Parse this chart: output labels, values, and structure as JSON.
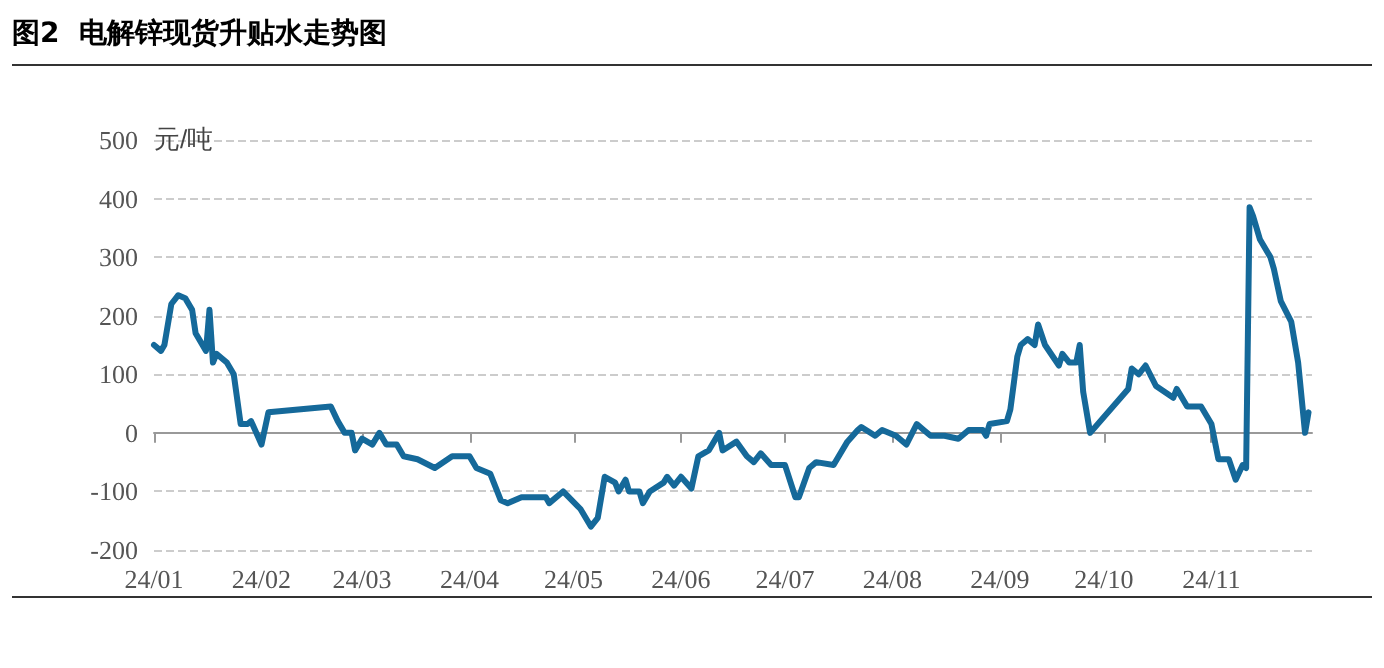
{
  "chart_data": {
    "type": "line",
    "title": "图2  电解锌现货升贴水走势图",
    "ylabel": "元/吨",
    "xlim": [
      "--01-01",
      "--11-30"
    ],
    "xticks": [
      {
        "value": "--01-01",
        "label": "24/01"
      },
      {
        "value": "--02-01",
        "label": "24/02"
      },
      {
        "value": "--03-01",
        "label": "24/03"
      },
      {
        "value": "--04-01",
        "label": "24/04"
      },
      {
        "value": "--05-01",
        "label": "24/05"
      },
      {
        "value": "--06-01",
        "label": "24/06"
      },
      {
        "value": "--07-01",
        "label": "24/07"
      },
      {
        "value": "--08-01",
        "label": "24/08"
      },
      {
        "value": "--09-01",
        "label": "24/09"
      },
      {
        "value": "--10-01",
        "label": "24/10"
      },
      {
        "value": "--11-01",
        "label": "24/11"
      }
    ],
    "ylim": [
      -200,
      500
    ],
    "yticks": [
      -200,
      -100,
      0,
      100,
      200,
      300,
      400,
      500
    ],
    "grid": "y",
    "marker": "none",
    "line_style": "solid",
    "series": [
      {
        "color": "#15699a",
        "x": [
          "--01-01",
          "--01-03",
          "--01-04",
          "--01-06",
          "--01-08",
          "--01-10",
          "--01-12",
          "--01-13",
          "--01-16",
          "--01-17",
          "--01-18",
          "--01-19",
          "--01-22",
          "--01-24",
          "--01-26",
          "--01-28",
          "--01-29",
          "--02-01",
          "--02-03",
          "--02-21",
          "--02-23",
          "--02-25",
          "--02-27",
          "--02-28",
          "--03-01",
          "--03-04",
          "--03-06",
          "--03-08",
          "--03-11",
          "--03-13",
          "--03-17",
          "--03-22",
          "--03-27",
          "--04-01",
          "--04-03",
          "--04-07",
          "--04-10",
          "--04-12",
          "--04-16",
          "--04-19",
          "--04-23",
          "--04-24",
          "--04-28",
          "--05-03",
          "--05-06",
          "--05-08",
          "--05-10",
          "--05-13",
          "--05-14",
          "--05-16",
          "--05-17",
          "--05-20",
          "--05-21",
          "--05-23",
          "--05-27",
          "--05-28",
          "--05-30",
          "--06-01",
          "--06-04",
          "--06-06",
          "--06-09",
          "--06-12",
          "--06-13",
          "--06-17",
          "--06-20",
          "--06-22",
          "--06-24",
          "--06-27",
          "--07-01",
          "--07-04",
          "--07-05",
          "--07-08",
          "--07-10",
          "--07-15",
          "--07-19",
          "--07-22",
          "--07-23",
          "--07-27",
          "--07-29",
          "--08-02",
          "--08-05",
          "--08-08",
          "--08-10",
          "--08-12",
          "--08-16",
          "--08-20",
          "--08-23",
          "--08-27",
          "--08-28",
          "--08-29",
          "--09-03",
          "--09-04",
          "--09-06",
          "--09-07",
          "--09-09",
          "--09-11",
          "--09-12",
          "--09-14",
          "--09-18",
          "--09-19",
          "--09-21",
          "--09-23",
          "--09-24",
          "--09-25",
          "--09-27",
          "--10-08",
          "--10-09",
          "--10-11",
          "--10-13",
          "--10-16",
          "--10-21",
          "--10-22",
          "--10-25",
          "--10-29",
          "--11-01",
          "--11-03",
          "--11-06",
          "--11-08",
          "--11-10",
          "--11-11",
          "--11-12",
          "--11-13",
          "--11-15",
          "--11-18",
          "--11-19",
          "--11-21",
          "--11-24",
          "--11-26",
          "--11-28",
          "--11-29"
        ],
        "values": [
          150,
          140,
          150,
          220,
          235,
          230,
          210,
          170,
          140,
          210,
          120,
          135,
          120,
          100,
          15,
          15,
          20,
          -20,
          35,
          45,
          20,
          0,
          0,
          -30,
          -10,
          -20,
          0,
          -20,
          -20,
          -40,
          -45,
          -60,
          -40,
          -40,
          -60,
          -70,
          -115,
          -120,
          -110,
          -110,
          -110,
          -120,
          -100,
          -130,
          -160,
          -145,
          -75,
          -85,
          -100,
          -80,
          -100,
          -100,
          -120,
          -100,
          -85,
          -75,
          -90,
          -75,
          -95,
          -40,
          -30,
          0,
          -30,
          -15,
          -40,
          -50,
          -35,
          -55,
          -55,
          -110,
          -110,
          -60,
          -50,
          -55,
          -15,
          5,
          10,
          -5,
          5,
          -5,
          -20,
          15,
          5,
          -5,
          -5,
          -10,
          5,
          5,
          -5,
          15,
          20,
          40,
          130,
          150,
          160,
          150,
          185,
          150,
          115,
          135,
          120,
          120,
          150,
          70,
          0,
          75,
          110,
          100,
          115,
          80,
          60,
          75,
          45,
          45,
          15,
          -45,
          -45,
          -80,
          -55,
          -60,
          385,
          370,
          330,
          300,
          280,
          225,
          190,
          120,
          0,
          35
        ]
      }
    ]
  }
}
